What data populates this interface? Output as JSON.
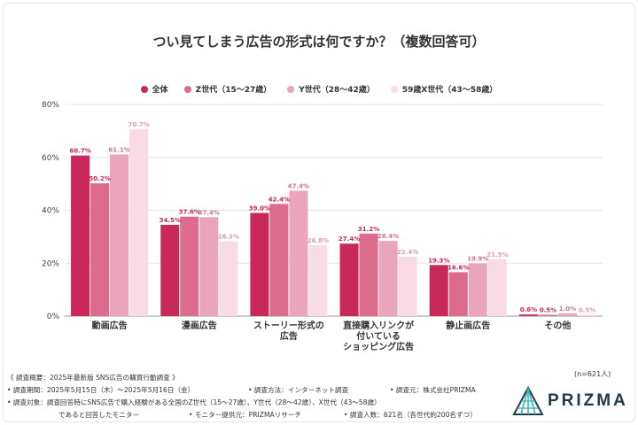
{
  "title": "つい見てしまう広告の形式は何ですか？（複数回答可）",
  "legend": [
    {
      "name": "全体",
      "color": "#c8285a"
    },
    {
      "name": "Z世代（15〜27歳）",
      "color": "#dd6b8e"
    },
    {
      "name": "Y世代（28〜42歳）",
      "color": "#eaa4bb"
    },
    {
      "name": "59歳X世代（43〜58歳）",
      "color": "#f8dbe4"
    }
  ],
  "chart_data": {
    "type": "bar",
    "title": "つい見てしまう広告の形式は何ですか？（複数回答可）",
    "categories": [
      "動画広告",
      "漫画広告",
      "ストーリー形式の\n広告",
      "直接購入リンクが\n付いている\nショッピング広告",
      "静止画広告",
      "その他"
    ],
    "series": [
      {
        "name": "全体",
        "color": "#c8285a",
        "label_color": "#c8285a",
        "values": [
          60.7,
          34.5,
          39.0,
          27.4,
          19.3,
          0.6
        ],
        "labels": [
          "60.7%",
          "34.5%",
          "39.0%",
          "27.4%",
          "19.3%",
          "0.6%"
        ]
      },
      {
        "name": "Z世代（15〜27歳）",
        "color": "#dd6b8e",
        "label_color": "#c8285a",
        "values": [
          50.2,
          37.6,
          42.4,
          31.2,
          16.6,
          0.5
        ],
        "labels": [
          "50.2%",
          "37.6%",
          "42.4%",
          "31.2%",
          "16.6%",
          "0.5%"
        ]
      },
      {
        "name": "Y世代（28〜42歳）",
        "color": "#eaa4bb",
        "label_color": "#d0709a",
        "values": [
          61.1,
          37.4,
          47.4,
          28.4,
          19.9,
          1.0
        ],
        "labels": [
          "61.1%",
          "37.4%",
          "47.4%",
          "28.4%",
          "19.9%",
          "1.0%"
        ]
      },
      {
        "name": "59歳X世代（43〜58歳）",
        "color": "#f8dbe4",
        "label_color": "#e39ab5",
        "values": [
          70.7,
          28.3,
          26.8,
          22.4,
          21.5,
          0.5
        ],
        "labels": [
          "70.7%",
          "28.3%",
          "26.8%",
          "22.4%",
          "21.5%",
          "0.5%"
        ]
      }
    ],
    "ylim": [
      0,
      80
    ],
    "yticks": [
      "0%",
      "20%",
      "40%",
      "60%",
      "80%"
    ],
    "grid": true,
    "legend_position": "top"
  },
  "sample_size": "(n=621人)",
  "notes": {
    "overview": "《 調査概要：2025年最新版 SNS広告の購買行動調査 》",
    "period": "• 調査期間：2025年5月15日（木）〜2025年5月16日（金）",
    "method": "• 調査方法：インターネット調査",
    "source": "• 調査元：株式会社PRIZMA",
    "target": "• 調査対象：調査回答時にSNS広告で購入経験がある全国のZ世代（15〜27歳）、Y世代（28〜42歳）、X世代（43〜58歳）",
    "target_cont": "であると回答したモニター",
    "monitor": "• モニター提供元：PRIZMAリサーチ",
    "count": "• 調査人数：621名（各世代約200名ずつ）"
  },
  "logo": {
    "text": "PRIZMA",
    "color": "#1b3a4b",
    "accent": "#2bb3a6"
  }
}
